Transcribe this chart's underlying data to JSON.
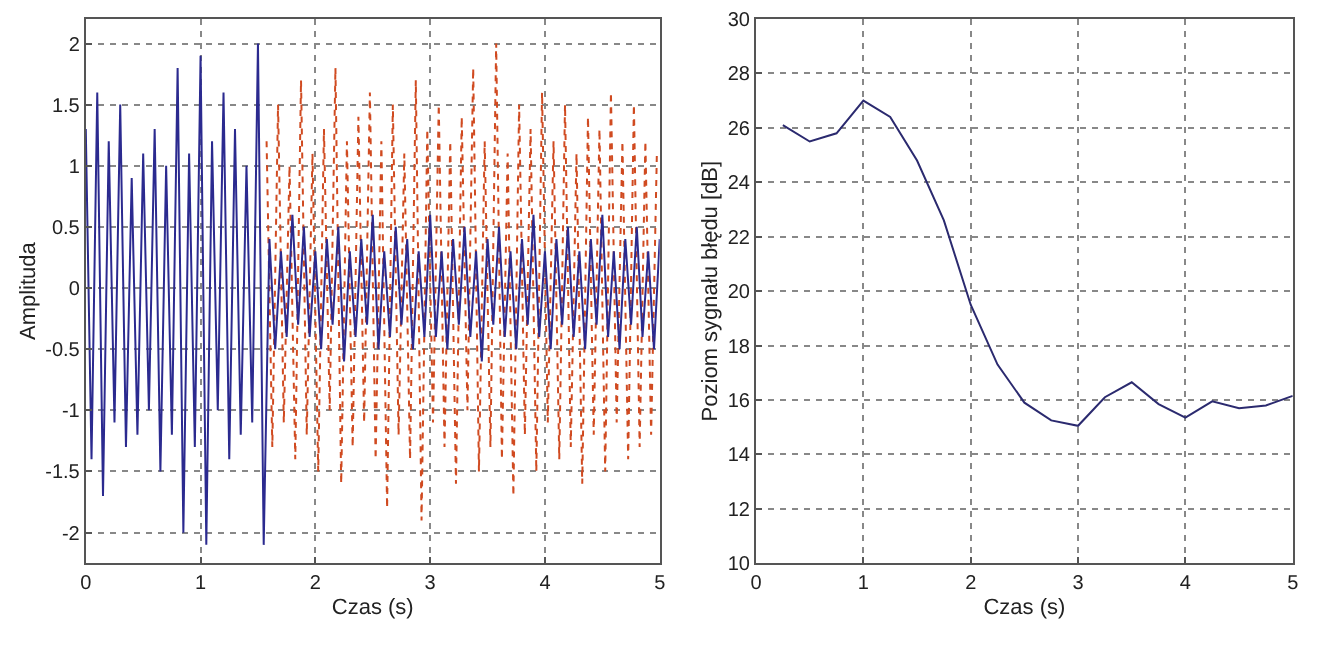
{
  "chart_data": [
    {
      "type": "line",
      "xlabel": "Czas (s)",
      "ylabel": "Amplituda",
      "xlim": [
        0,
        5
      ],
      "ylim": [
        -2.25,
        2.2
      ],
      "xticks": [
        0,
        1,
        2,
        3,
        4,
        5
      ],
      "yticks": [
        -2,
        -1.5,
        -1,
        -0.5,
        0,
        0.5,
        1,
        1.5,
        2
      ],
      "grid": true,
      "series": [
        {
          "color": "#d04a20",
          "line_style": "dotted",
          "x": [
            1.575,
            1.625,
            1.675,
            1.725,
            1.775,
            1.825,
            1.875,
            1.925,
            1.975,
            2.025,
            2.075,
            2.125,
            2.175,
            2.225,
            2.275,
            2.325,
            2.375,
            2.425,
            2.475,
            2.525,
            2.575,
            2.625,
            2.675,
            2.725,
            2.775,
            2.825,
            2.875,
            2.925,
            2.975,
            3.025,
            3.075,
            3.125,
            3.175,
            3.225,
            3.275,
            3.325,
            3.375,
            3.425,
            3.475,
            3.525,
            3.575,
            3.625,
            3.675,
            3.725,
            3.775,
            3.825,
            3.875,
            3.925,
            3.975,
            4.025,
            4.075,
            4.125,
            4.175,
            4.225,
            4.275,
            4.325,
            4.375,
            4.425,
            4.475,
            4.525,
            4.575,
            4.625,
            4.675,
            4.725,
            4.775,
            4.825,
            4.875,
            4.925,
            4.975
          ],
          "values": [
            1.2,
            -1.3,
            1.5,
            -1.1,
            1.0,
            -1.4,
            1.7,
            -1.2,
            1.1,
            -1.5,
            1.3,
            -1.0,
            1.8,
            -1.6,
            1.2,
            -1.3,
            1.4,
            -1.1,
            1.6,
            -1.4,
            1.2,
            -1.8,
            1.5,
            -1.2,
            1.1,
            -1.4,
            1.7,
            -1.9,
            1.3,
            -1.1,
            1.5,
            -1.3,
            1.2,
            -1.6,
            1.4,
            -1.0,
            1.8,
            -1.5,
            1.2,
            -1.3,
            2.0,
            -1.4,
            1.1,
            -1.7,
            1.5,
            -1.2,
            1.3,
            -1.5,
            1.6,
            -1.1,
            1.2,
            -1.4,
            1.5,
            -1.3,
            1.1,
            -1.6,
            1.4,
            -1.2,
            1.3,
            -1.5,
            1.6,
            -1.1,
            1.2,
            -1.4,
            1.5,
            -1.3,
            1.2,
            -1.2,
            1.1
          ]
        },
        {
          "color": "#2b2a8f",
          "line_style": "solid",
          "x": [
            0,
            0.05,
            0.1,
            0.15,
            0.2,
            0.25,
            0.3,
            0.35,
            0.4,
            0.45,
            0.5,
            0.55,
            0.6,
            0.65,
            0.7,
            0.75,
            0.8,
            0.85,
            0.9,
            0.95,
            1.0,
            1.05,
            1.1,
            1.15,
            1.2,
            1.25,
            1.3,
            1.35,
            1.4,
            1.45,
            1.5,
            1.55,
            1.6,
            1.65,
            1.7,
            1.75,
            1.8,
            1.85,
            1.9,
            1.95,
            2.0,
            2.05,
            2.1,
            2.15,
            2.2,
            2.25,
            2.3,
            2.35,
            2.4,
            2.45,
            2.5,
            2.55,
            2.6,
            2.65,
            2.7,
            2.75,
            2.8,
            2.85,
            2.9,
            2.95,
            3.0,
            3.05,
            3.1,
            3.15,
            3.2,
            3.25,
            3.3,
            3.35,
            3.4,
            3.45,
            3.5,
            3.55,
            3.6,
            3.65,
            3.7,
            3.75,
            3.8,
            3.85,
            3.9,
            3.95,
            4.0,
            4.05,
            4.1,
            4.15,
            4.2,
            4.25,
            4.3,
            4.35,
            4.4,
            4.45,
            4.5,
            4.55,
            4.6,
            4.65,
            4.7,
            4.75,
            4.8,
            4.85,
            4.9,
            4.95,
            5.0
          ],
          "values": [
            1.3,
            -1.4,
            1.6,
            -1.7,
            1.2,
            -1.1,
            1.5,
            -1.3,
            0.9,
            -1.2,
            1.1,
            -1.0,
            1.3,
            -1.5,
            1.0,
            -1.2,
            1.8,
            -2.0,
            1.1,
            -1.3,
            1.9,
            -2.1,
            1.2,
            -1.0,
            1.6,
            -1.4,
            1.3,
            -1.2,
            1.0,
            -1.1,
            2.0,
            -2.1,
            0.4,
            -0.5,
            0.3,
            -0.4,
            0.6,
            -0.3,
            0.5,
            -0.4,
            0.3,
            -0.5,
            0.4,
            -0.3,
            0.5,
            -0.6,
            0.3,
            -0.4,
            0.4,
            -0.3,
            0.6,
            -0.5,
            0.3,
            -0.4,
            0.5,
            -0.3,
            0.4,
            -0.5,
            0.3,
            -0.4,
            0.6,
            -0.4,
            0.3,
            -0.5,
            0.4,
            -0.3,
            0.5,
            -0.4,
            0.3,
            -0.6,
            0.4,
            -0.3,
            0.5,
            -0.4,
            0.3,
            -0.5,
            0.4,
            -0.3,
            0.6,
            -0.4,
            0.3,
            -0.5,
            0.4,
            -0.3,
            0.5,
            -0.4,
            0.3,
            -0.5,
            0.4,
            -0.3,
            0.6,
            -0.4,
            0.3,
            -0.5,
            0.4,
            -0.3,
            0.5,
            -0.4,
            0.3,
            -0.5,
            0.4
          ]
        }
      ]
    },
    {
      "type": "line",
      "xlabel": "Czas (s)",
      "ylabel": "Poziom sygnału błędu [dB]",
      "xlim": [
        0,
        5
      ],
      "ylim": [
        10,
        30
      ],
      "xticks": [
        0,
        1,
        2,
        3,
        4,
        5
      ],
      "yticks": [
        10,
        12,
        14,
        16,
        18,
        20,
        22,
        24,
        26,
        28,
        30
      ],
      "grid": true,
      "x": [
        0.25,
        0.5,
        0.75,
        1.0,
        1.25,
        1.5,
        1.75,
        2.0,
        2.25,
        2.5,
        2.75,
        3.0,
        3.25,
        3.5,
        3.75,
        4.0,
        4.25,
        4.5,
        4.75,
        5.0
      ],
      "series": [
        {
          "color": "#2b2a6f",
          "values": [
            26.1,
            25.5,
            25.8,
            27.0,
            26.4,
            24.8,
            22.6,
            19.5,
            17.3,
            15.9,
            15.25,
            15.05,
            16.1,
            16.65,
            15.85,
            15.35,
            15.95,
            15.7,
            15.8,
            16.15
          ]
        }
      ]
    }
  ]
}
